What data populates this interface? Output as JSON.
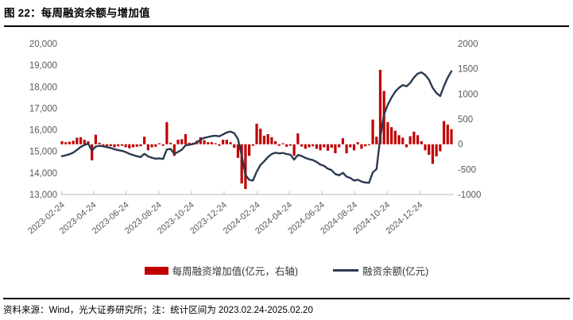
{
  "header": {
    "title": "图 22：每周融资余额与增加值"
  },
  "footer": {
    "source": "资料来源：Wind，光大证券研究所；注：统计区间为 2023.02.24-2025.02.20"
  },
  "colors": {
    "bar": "#C00000",
    "line": "#2B3A4F",
    "axis_text": "#595959",
    "axis_line": "#D0D0D0",
    "tick_mark": "#C9C9C9",
    "title_text": "#000000"
  },
  "legend": [
    {
      "label": "每周融资增加值(亿元，右轴)",
      "type": "bar",
      "color": "#C00000"
    },
    {
      "label": "融资余额(亿元)",
      "type": "line",
      "color": "#2B3A4F"
    }
  ],
  "chart_data": {
    "type": "combo",
    "frequency": "weekly",
    "start_date": "2023-02-24",
    "end_date": "2025-02-20",
    "grid": "off",
    "legend_position": "bottom",
    "left_axis": {
      "min": 13000,
      "max": 20000,
      "tick_step": 1000,
      "ticks": [
        "20,000",
        "19,000",
        "18,000",
        "17,000",
        "16,000",
        "15,000",
        "14,000",
        "13,000"
      ],
      "tick_values": [
        20000,
        19000,
        18000,
        17000,
        16000,
        15000,
        14000,
        13000
      ]
    },
    "right_axis": {
      "min": -1000,
      "max": 2000,
      "tick_step": 500,
      "ticks": [
        "2000",
        "1500",
        "1000",
        "500",
        "0",
        "-500",
        "-1000"
      ],
      "tick_values": [
        2000,
        1500,
        1000,
        500,
        0,
        -500,
        -1000
      ]
    },
    "x_ticks": [
      {
        "label": "2023-02-24",
        "week": 0
      },
      {
        "label": "2023-04-24",
        "week": 8.43
      },
      {
        "label": "2023-06-24",
        "week": 17.14
      },
      {
        "label": "2023-08-24",
        "week": 25.86
      },
      {
        "label": "2023-10-24",
        "week": 34.57
      },
      {
        "label": "2023-12-24",
        "week": 43.29
      },
      {
        "label": "2024-02-24",
        "week": 52.14
      },
      {
        "label": "2024-04-24",
        "week": 60.71
      },
      {
        "label": "2024-06-24",
        "week": 69.43
      },
      {
        "label": "2024-08-24",
        "week": 78.14
      },
      {
        "label": "2024-10-24",
        "week": 86.86
      },
      {
        "label": "2024-12-24",
        "week": 95.57
      }
    ],
    "series": [
      {
        "name": "每周融资增加值(亿元，右轴)",
        "type": "bar",
        "axis": "right",
        "color": "#C00000",
        "values": [
          60,
          40,
          50,
          70,
          130,
          140,
          90,
          60,
          -320,
          190,
          30,
          -20,
          -40,
          -40,
          -60,
          -40,
          -30,
          -60,
          -80,
          -60,
          -50,
          -40,
          150,
          -120,
          -60,
          -50,
          20,
          -30,
          440,
          30,
          -230,
          90,
          100,
          200,
          30,
          30,
          70,
          140,
          80,
          40,
          40,
          20,
          -30,
          90,
          90,
          40,
          -70,
          -270,
          -780,
          -890,
          -230,
          -30,
          410,
          310,
          170,
          200,
          140,
          60,
          -30,
          20,
          -50,
          -30,
          -230,
          215,
          -45,
          -90,
          -60,
          -40,
          -90,
          -120,
          -60,
          -130,
          -70,
          -180,
          -60,
          120,
          -180,
          -60,
          -120,
          40,
          -90,
          -40,
          -20,
          490,
          150,
          1480,
          1060,
          440,
          340,
          270,
          180,
          130,
          -60,
          160,
          250,
          180,
          60,
          -120,
          -210,
          -390,
          -240,
          -140,
          460,
          390,
          300
        ]
      },
      {
        "name": "融资余额(亿元)",
        "type": "line",
        "axis": "left",
        "color": "#2B3A4F",
        "values": [
          14780,
          14820,
          14870,
          14940,
          15070,
          15210,
          15300,
          15360,
          15040,
          15230,
          15260,
          15240,
          15200,
          15160,
          15100,
          15060,
          15030,
          14970,
          14890,
          14830,
          14780,
          14740,
          14890,
          14770,
          14710,
          14660,
          14680,
          14650,
          15090,
          15120,
          14890,
          14980,
          15080,
          15280,
          15310,
          15340,
          15410,
          15550,
          15630,
          15670,
          15710,
          15730,
          15700,
          15790,
          15880,
          15920,
          15850,
          15580,
          14800,
          13910,
          13680,
          13650,
          14060,
          14370,
          14540,
          14740,
          14880,
          14940,
          14910,
          14930,
          14880,
          14850,
          14620,
          14835,
          14790,
          14700,
          14640,
          14600,
          14510,
          14390,
          14330,
          14200,
          14130,
          13950,
          13890,
          14010,
          13830,
          13770,
          13650,
          13690,
          13600,
          13560,
          13540,
          14030,
          14180,
          15660,
          16720,
          17160,
          17500,
          17770,
          17950,
          18080,
          18020,
          18180,
          18430,
          18610,
          18670,
          18550,
          18340,
          17950,
          17710,
          17570,
          18030,
          18420,
          18720
        ]
      }
    ]
  }
}
